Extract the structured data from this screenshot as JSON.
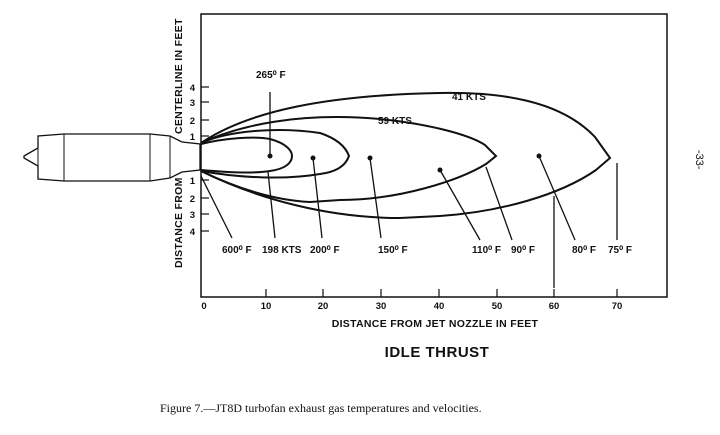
{
  "diagram": {
    "title": "IDLE THRUST",
    "x_axis": {
      "label": "DISTANCE FROM JET NOZZLE IN FEET",
      "ticks": [
        "0",
        "10",
        "20",
        "30",
        "40",
        "50",
        "60",
        "70"
      ]
    },
    "y_axis": {
      "label_upper": "CENTERLINE IN FEET",
      "label_lower": "DISTANCE FROM",
      "ticks_upper": [
        "4",
        "3",
        "2",
        "1"
      ],
      "ticks_lower": [
        "1",
        "2",
        "3",
        "4"
      ]
    },
    "labels": {
      "t265": "265⁰ F",
      "v41": "41 KTS",
      "v59": "59 KTS",
      "t600": "600⁰ F",
      "v198": "198 KTS",
      "t200": "200⁰ F",
      "t150": "150⁰ F",
      "t110": "110⁰ F",
      "t90": "90⁰ F",
      "t80": "80⁰ F",
      "t75": "75⁰ F"
    }
  },
  "caption": "Figure 7.—JT8D turbofan exhaust gas temperatures and velocities.",
  "page_number": "-33-"
}
